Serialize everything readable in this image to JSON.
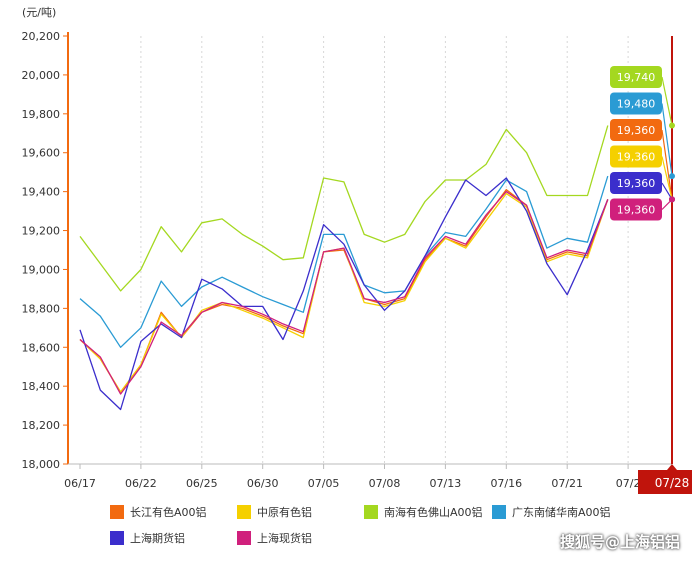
{
  "chart_data": {
    "type": "line",
    "unit_label": "(元/吨)",
    "y_ticks": [
      "18,000",
      "18,200",
      "18,400",
      "18,600",
      "18,800",
      "19,000",
      "19,200",
      "19,400",
      "19,600",
      "19,800",
      "20,000",
      "20,200"
    ],
    "ylim": [
      18000,
      20200
    ],
    "x_tick_labels": [
      "06/17",
      "06/22",
      "06/25",
      "06/30",
      "07/05",
      "07/08",
      "07/13",
      "07/16",
      "07/21",
      "07/2"
    ],
    "highlight_x_label": "07/28",
    "grid_vertical": true,
    "grid_horizontal": false,
    "legend_position": "bottom",
    "series": [
      {
        "name": "长江有色A00铝",
        "color": "#f26a10",
        "end_label": "19,360",
        "values": [
          18640,
          18540,
          18370,
          18510,
          18780,
          18650,
          18780,
          18820,
          18800,
          18760,
          18710,
          18670,
          19090,
          19100,
          18850,
          18820,
          18850,
          19050,
          19160,
          19120,
          19270,
          19410,
          19330,
          19050,
          19090,
          19070,
          19360
        ]
      },
      {
        "name": "中原有色铝",
        "color": "#f5d000",
        "end_label": "19,360",
        "values": [
          18640,
          18540,
          18370,
          18510,
          18770,
          18650,
          18790,
          18830,
          18790,
          18750,
          18700,
          18650,
          19090,
          19110,
          18830,
          18810,
          18840,
          19040,
          19160,
          19110,
          19250,
          19390,
          19320,
          19040,
          19080,
          19060,
          19360
        ]
      },
      {
        "name": "南海有色佛山A00铝",
        "color": "#a4d820",
        "end_label": "19,740",
        "values": [
          19170,
          19030,
          18890,
          19000,
          19220,
          19090,
          19240,
          19260,
          19180,
          19120,
          19050,
          19060,
          19470,
          19450,
          19180,
          19140,
          19180,
          19350,
          19460,
          19460,
          19540,
          19720,
          19600,
          19380,
          19380,
          19380,
          19740
        ]
      },
      {
        "name": "广东南储华南A00铝",
        "color": "#2a9bd4",
        "end_label": "19,480",
        "values": [
          18850,
          18760,
          18600,
          18700,
          18940,
          18810,
          18910,
          18960,
          18910,
          18860,
          18820,
          18780,
          19180,
          19180,
          18920,
          18880,
          18890,
          19070,
          19190,
          19170,
          19310,
          19460,
          19400,
          19110,
          19160,
          19140,
          19480
        ]
      },
      {
        "name": "上海期货铝",
        "color": "#3b2ecc",
        "end_label": "19,360",
        "values": [
          18690,
          18380,
          18280,
          18630,
          18720,
          18650,
          18950,
          18900,
          18810,
          18810,
          18640,
          18890,
          19230,
          19130,
          18920,
          18790,
          18890,
          19070,
          19270,
          19460,
          19380,
          19470,
          19300,
          19030,
          18870,
          19100,
          19360
        ]
      },
      {
        "name": "上海现货铝",
        "color": "#d0207c",
        "end_label": "19,360",
        "values": [
          18640,
          18550,
          18360,
          18500,
          18730,
          18660,
          18780,
          18830,
          18810,
          18770,
          18720,
          18680,
          19090,
          19110,
          18850,
          18830,
          18860,
          19060,
          19170,
          19130,
          19280,
          19400,
          19330,
          19060,
          19100,
          19080,
          19360
        ]
      }
    ],
    "label_order": [
      2,
      3,
      0,
      1,
      4,
      5
    ]
  },
  "watermark": "搜狐号@上海铝铝"
}
